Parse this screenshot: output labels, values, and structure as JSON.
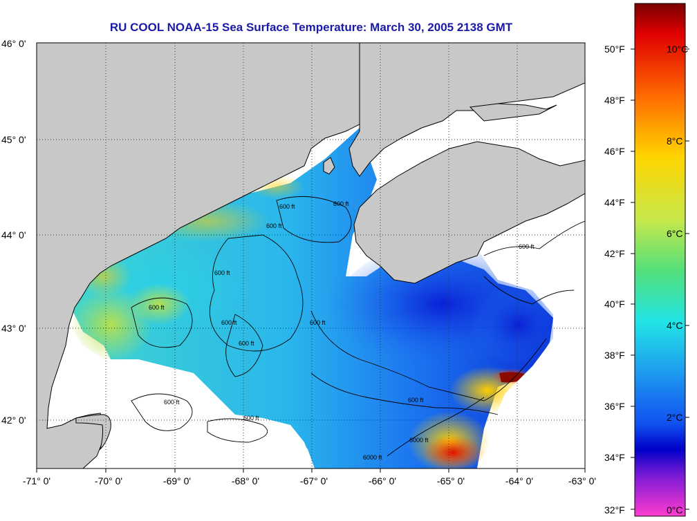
{
  "title": "RU COOL  NOAA-15  Sea Surface Temperature:  March 30, 2005 2138 GMT",
  "map": {
    "longitude_ticks": [
      "-71° 0'",
      "-70° 0'",
      "-69° 0'",
      "-68° 0'",
      "-67° 0'",
      "-66° 0'",
      "-65° 0'",
      "-64° 0'",
      "-63° 0'"
    ],
    "latitude_ticks": [
      "46° 0'",
      "45° 0'",
      "44° 0'",
      "43° 0'",
      "42° 0'"
    ],
    "contour_labels": [
      "600 ft",
      "600 ft",
      "600 ft",
      "600 ft",
      "600 ft",
      "600 ft",
      "600 ft",
      "600 ft",
      "600 ft",
      "600 ft",
      "600 ft",
      "6000 ft",
      "600 ft",
      "6000 ft"
    ],
    "colors": {
      "land": "#c8c8c8",
      "cloud_no_data": "#ffffff",
      "coastline": "#000000",
      "grid": "#555555"
    }
  },
  "legend": {
    "fahrenheit_labels": [
      "50°F",
      "48°F",
      "46°F",
      "44°F",
      "42°F",
      "40°F",
      "38°F",
      "36°F",
      "34°F",
      "32°F"
    ],
    "celsius_labels": [
      "10°C",
      "8°C",
      "6°C",
      "4°C",
      "2°C",
      "0°C"
    ],
    "gradient_colors": [
      "#7a0000",
      "#e60000",
      "#ff6a00",
      "#ffd500",
      "#c8e84a",
      "#55e07a",
      "#22e5e5",
      "#1e9bf0",
      "#1050f0",
      "#0000c8",
      "#7a1ad6",
      "#ff3ccf"
    ]
  }
}
